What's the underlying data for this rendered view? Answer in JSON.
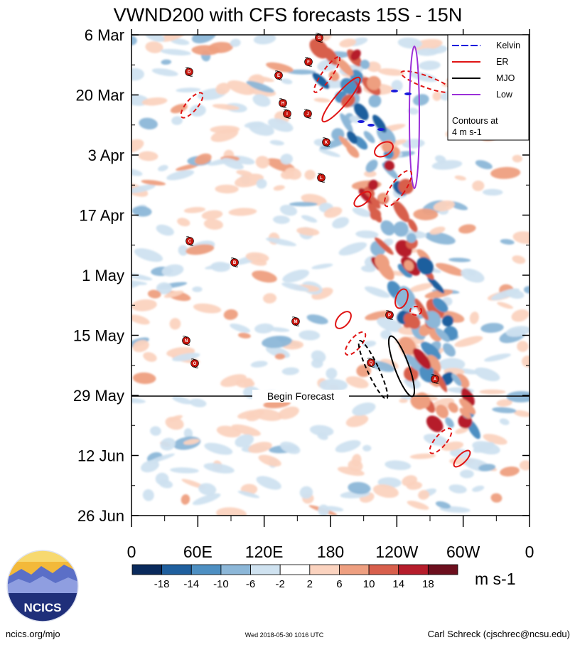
{
  "chart_data": {
    "type": "heatmap",
    "title": "VWND200 with CFS forecasts  15S - 15N",
    "y_ticks": [
      "6 Mar",
      "20 Mar",
      "3 Apr",
      "17 Apr",
      "1 May",
      "15 May",
      "29 May",
      "12 Jun",
      "26 Jun"
    ],
    "x_ticks": [
      "0",
      "60E",
      "120E",
      "180",
      "120W",
      "60W",
      "0"
    ],
    "x_range_deg_east": [
      0,
      360
    ],
    "time_range": [
      "6 Mar",
      "26 Jun"
    ],
    "forecast_start": "29 May",
    "forecast_label": "Begin Forecast",
    "units": "m s-1",
    "colorbar": {
      "ticks": [
        "-18",
        "-14",
        "-10",
        "-6",
        "-2",
        "2",
        "6",
        "10",
        "14",
        "18"
      ],
      "colors": [
        "#0a2a5c",
        "#1f5f9e",
        "#4d8fc2",
        "#8cb7d8",
        "#cfe2f0",
        "#ffffff",
        "#fbd3bf",
        "#ee9f80",
        "#d85f4c",
        "#b61d2b",
        "#6d0f1e"
      ]
    },
    "legend": {
      "placement": "top-right",
      "items": [
        {
          "label": "Kelvin",
          "color": "#1a1adc"
        },
        {
          "label": "ER",
          "color": "#e01414"
        },
        {
          "label": "MJO",
          "color": "#000000"
        },
        {
          "label": "Low",
          "color": "#9b30d8"
        }
      ],
      "note": [
        "Contours at",
        "4 m s-1"
      ]
    },
    "storm_markers": [
      "A",
      "B",
      "C",
      "D",
      "E",
      "F",
      "G",
      "H",
      "I",
      "J",
      "K",
      "L",
      "M",
      "N",
      "O",
      "P",
      "Q",
      "R",
      "S",
      "T",
      "U",
      "V"
    ]
  },
  "logo": {
    "text": "NCICS"
  },
  "footer": {
    "left": "ncics.org/mjo",
    "center": "Wed 2018-05-30 1016 UTC",
    "right": "Carl Schreck (cjschrec@ncsu.edu)"
  }
}
